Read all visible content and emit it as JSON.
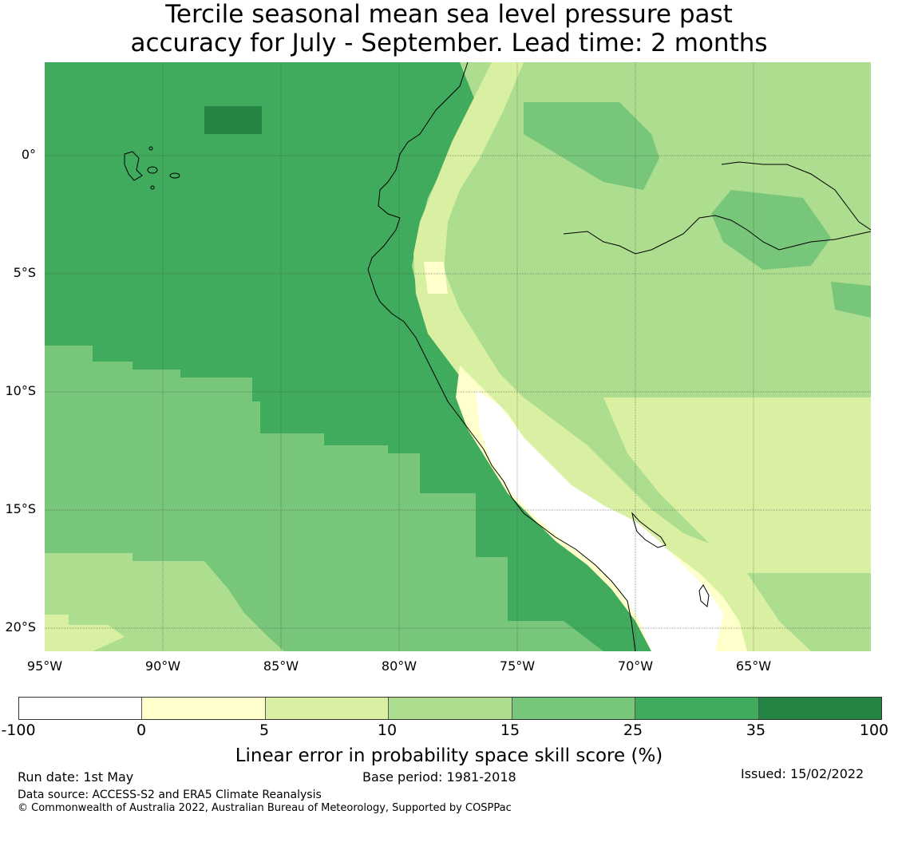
{
  "title": {
    "line1": "Tercile seasonal mean sea level pressure past",
    "line2": "accuracy for July - September. Lead time: 2 months"
  },
  "map": {
    "lat_labels": [
      "0°",
      "5°S",
      "10°S",
      "15°S",
      "20°S"
    ],
    "lon_labels": [
      "95°W",
      "90°W",
      "85°W",
      "80°W",
      "75°W",
      "70°W",
      "65°W"
    ],
    "colors": {
      "lt0": "#ffffff",
      "c0_5": "#ffffcc",
      "c5_10": "#d9f0a3",
      "c10_15": "#addd8e",
      "c15_25": "#78c679",
      "c25_35": "#41ab5d",
      "c35_100": "#238443",
      "coast": "#000000",
      "grid": "#444444"
    }
  },
  "colorbar": {
    "ticks": [
      "-100",
      "0",
      "5",
      "10",
      "15",
      "25",
      "35",
      "100"
    ],
    "colors": [
      "#ffffff",
      "#ffffcc",
      "#d9f0a3",
      "#addd8e",
      "#78c679",
      "#41ab5d",
      "#238443"
    ],
    "label": "Linear error in probability space skill score (%)"
  },
  "footer": {
    "run_date": "Run date: 1st May",
    "base_period": "Base period: 1981-2018",
    "issued": "Issued: 15/02/2022",
    "data_source": "Data source: ACCESS-S2 and ERA5 Climate Reanalysis",
    "copyright": "© Commonwealth of Australia 2022, Australian Bureau of Meteorology, Supported by COSPPac"
  }
}
